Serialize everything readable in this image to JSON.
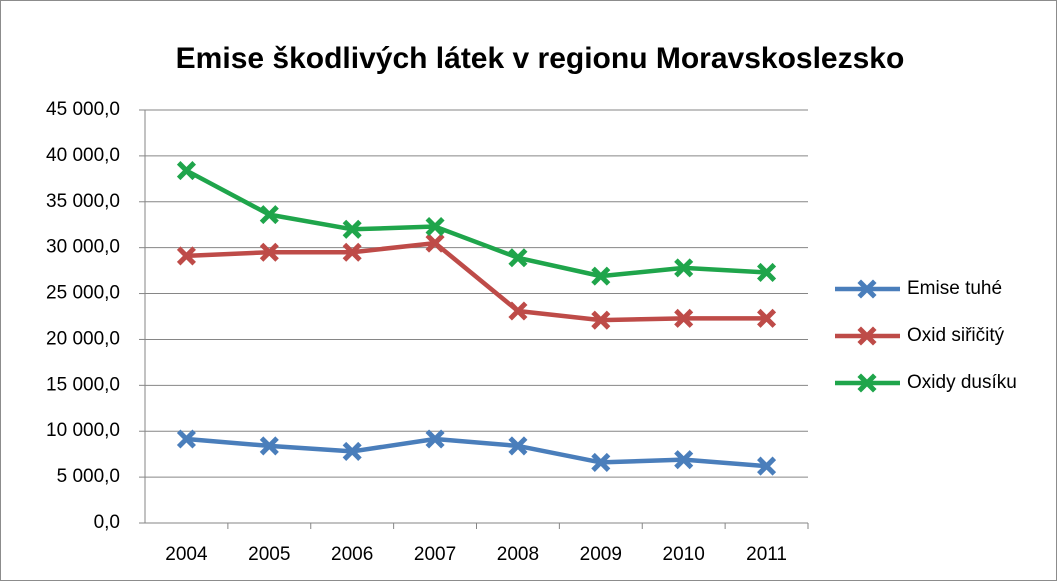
{
  "chart_data": {
    "type": "line",
    "title": "Emise škodlivých látek v regionu Moravskoslezsko",
    "categories": [
      "2004",
      "2005",
      "2006",
      "2007",
      "2008",
      "2009",
      "2010",
      "2011"
    ],
    "series": [
      {
        "name": "Emise tuhé",
        "color": "#4a7ebb",
        "values": [
          9150,
          8400,
          7800,
          9150,
          8400,
          6600,
          6900,
          6200
        ]
      },
      {
        "name": "Oxid siřičitý",
        "color": "#be4b48",
        "values": [
          29100,
          29500,
          29500,
          30500,
          23100,
          22100,
          22300,
          22300
        ]
      },
      {
        "name": "Oxidy dusíku",
        "color": "#1fa54b",
        "values": [
          38400,
          33600,
          32000,
          32300,
          28900,
          26900,
          27800,
          27300
        ]
      }
    ],
    "ylim": [
      0,
      45000
    ],
    "yticks": [
      {
        "value": 0,
        "label": "0,0"
      },
      {
        "value": 5000,
        "label": "5 000,0"
      },
      {
        "value": 10000,
        "label": "10 000,0"
      },
      {
        "value": 15000,
        "label": "15 000,0"
      },
      {
        "value": 20000,
        "label": "20 000,0"
      },
      {
        "value": 25000,
        "label": "25 000,0"
      },
      {
        "value": 30000,
        "label": "30 000,0"
      },
      {
        "value": 35000,
        "label": "35 000,0"
      },
      {
        "value": 40000,
        "label": "40 000,0"
      },
      {
        "value": 45000,
        "label": "45 000,0"
      }
    ],
    "grid": true,
    "legend": "right"
  }
}
